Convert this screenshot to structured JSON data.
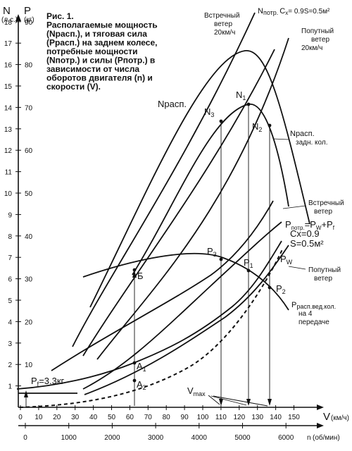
{
  "caption": {
    "lines": [
      "Рис. 1.",
      "Располагаемые мощность",
      "(Nрасп.), и тяговая сила",
      "(Pрасп.) на заднем колесе,",
      "потребные мощности",
      "(Nпотр.) и силы (Pпотр.) в",
      "зависимости от числа",
      "оборотов двигателя (n) и",
      "скорости (V)."
    ]
  },
  "axes": {
    "n_axis_label": "N",
    "n_unit": "(л.с.)",
    "p_axis_label": "P",
    "p_unit": "(кг)",
    "v_axis_label": "V",
    "v_unit": "(км/ч)",
    "rpm_axis_label": "n",
    "rpm_unit": "(об/мин)",
    "n_ticks": [
      "1",
      "2",
      "3",
      "4",
      "5",
      "6",
      "7",
      "8",
      "9",
      "10",
      "11",
      "12",
      "13",
      "14",
      "15",
      "16",
      "17",
      "18"
    ],
    "p_ticks": [
      "10",
      "20",
      "30",
      "40",
      "50",
      "60",
      "70",
      "80",
      "90"
    ],
    "v_ticks": [
      "0",
      "10",
      "20",
      "30",
      "40",
      "50",
      "60",
      "70",
      "80",
      "90",
      "100",
      "110",
      "120",
      "130",
      "140",
      "150"
    ],
    "rpm_ticks": [
      "0",
      "1000",
      "2000",
      "3000",
      "4000",
      "5000",
      "6000"
    ]
  },
  "labels": {
    "n_avail": "Nрасп.",
    "n_avail_rear": "Nрасп.",
    "n_avail_rear_2": "задн. кол.",
    "n_req_prefix": "N",
    "n_req_sub": "потр.",
    "n_req_cx": "C",
    "n_req_cx_sub": "x",
    "n_req_params": "= 0.9S=0.5м²",
    "headwind_top_1": "Встречный",
    "headwind_top_2": "ветер",
    "headwind_top_3": "20км/ч",
    "tailwind_top_1": "Попутный",
    "tailwind_top_2": "ветер",
    "tailwind_top_3": "20км/ч",
    "headwind_mid_1": "Встречный",
    "headwind_mid_2": "ветер",
    "p_req_formula_1": "P",
    "p_req_formula_sub": "потр.",
    "p_req_formula_2": "=P",
    "p_req_formula_w": "W",
    "p_req_formula_3": "+P",
    "p_req_formula_f": "f",
    "cx_line": "Cx=0.9",
    "s_line": "S=0.5м²",
    "pw_label": "P",
    "pw_sub": "W",
    "tailwind_mid_1": "Попутный",
    "tailwind_mid_2": "ветер",
    "p_avail_1": "P",
    "p_avail_1_sub": "расп.вед.кол.",
    "p_avail_2": "на 4",
    "p_avail_3": "передаче",
    "pf_label": "P",
    "pf_sub": "f",
    "pf_value": "=3.3кг",
    "vmax": "V",
    "vmax_sub": "max",
    "point_N1": "N",
    "point_N1_sub": "1",
    "point_N2": "N",
    "point_N2_sub": "2",
    "point_N3": "N",
    "point_N3_sub": "3",
    "point_P1": "P",
    "point_P1_sub": "1",
    "point_P2": "P",
    "point_P2_sub": "2",
    "point_P3": "P",
    "point_P3_sub": "3",
    "point_B": "Б",
    "point_A1": "A",
    "point_A1_sub": "1",
    "point_A2": "A",
    "point_A2_sub": "2"
  },
  "colors": {
    "ink": "#111111",
    "background": "#ffffff"
  }
}
